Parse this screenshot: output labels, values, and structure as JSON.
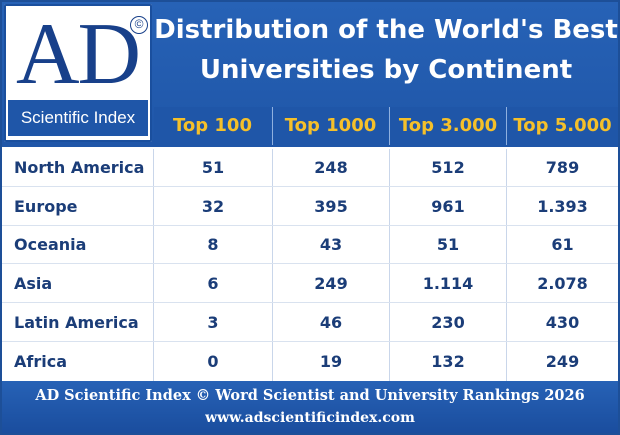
{
  "logo": {
    "letters": "AD",
    "copyright": "©",
    "subtitle": "Scientific Index"
  },
  "title": {
    "line1": "Distribution of the World's Best",
    "line2": "Universities by Continent"
  },
  "table": {
    "columns": [
      "Top 100",
      "Top 1000",
      "Top 3.000",
      "Top 5.000"
    ],
    "rows": [
      {
        "continent": "North America",
        "values": [
          "51",
          "248",
          "512",
          "789"
        ]
      },
      {
        "continent": "Europe",
        "values": [
          "32",
          "395",
          "961",
          "1.393"
        ]
      },
      {
        "continent": "Oceania",
        "values": [
          "8",
          "43",
          "51",
          "61"
        ]
      },
      {
        "continent": "Asia",
        "values": [
          "6",
          "249",
          "1.114",
          "2.078"
        ]
      },
      {
        "continent": "Latin America",
        "values": [
          "3",
          "46",
          "230",
          "430"
        ]
      },
      {
        "continent": "Africa",
        "values": [
          "0",
          "19",
          "132",
          "249"
        ]
      }
    ]
  },
  "footer": {
    "line1": "AD Scientific Index ©  Word Scientist and University Rankings 2026",
    "line2": "www.adscientificindex.com"
  },
  "colors": {
    "brand_blue": "#1f56a8",
    "header_text": "#f5c02a",
    "body_text": "#1b3d78"
  }
}
